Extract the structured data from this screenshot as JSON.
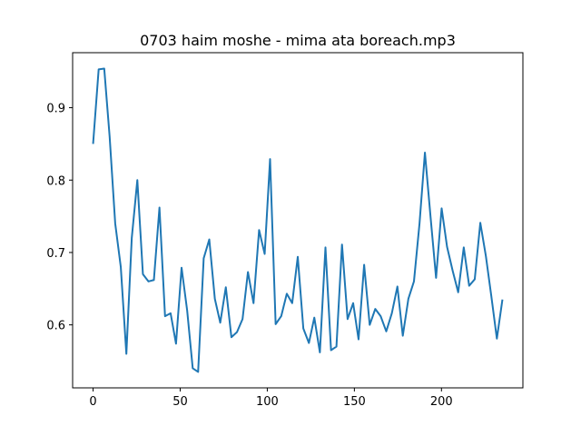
{
  "chart_data": {
    "type": "line",
    "title": "0703 haim moshe - mima ata boreach.mp3",
    "x": [
      0,
      3.2,
      6.4,
      9.5,
      12.7,
      15.9,
      19.1,
      22.2,
      25.4,
      28.6,
      31.8,
      34.9,
      38.1,
      41.3,
      44.5,
      47.6,
      50.8,
      54,
      57.2,
      60.3,
      63.5,
      66.7,
      69.9,
      73,
      76.2,
      79.4,
      82.6,
      85.8,
      88.9,
      92.1,
      95.3,
      98.5,
      101.6,
      104.8,
      108,
      111.2,
      114.3,
      117.5,
      120.7,
      123.9,
      127,
      130.2,
      133.4,
      136.6,
      139.7,
      142.9,
      146.1,
      149.3,
      152.4,
      155.6,
      158.8,
      162,
      165.1,
      168.3,
      171.5,
      174.7,
      177.8,
      181,
      184.2,
      187.4,
      190.5,
      193.7,
      196.9,
      200.1,
      203.2,
      206.4,
      209.6,
      212.8,
      215.9,
      219.1,
      222.3,
      225.5,
      228.6,
      231.8,
      235
    ],
    "series": [
      {
        "color": "#1f77b4",
        "values": [
          0.85,
          0.953,
          0.954,
          0.86,
          0.74,
          0.68,
          0.56,
          0.72,
          0.8,
          0.67,
          0.66,
          0.662,
          0.762,
          0.612,
          0.616,
          0.574,
          0.679,
          0.62,
          0.54,
          0.535,
          0.692,
          0.718,
          0.636,
          0.603,
          0.652,
          0.583,
          0.59,
          0.608,
          0.673,
          0.63,
          0.731,
          0.698,
          0.829,
          0.601,
          0.612,
          0.643,
          0.63,
          0.694,
          0.595,
          0.575,
          0.61,
          0.562,
          0.707,
          0.565,
          0.57,
          0.711,
          0.608,
          0.63,
          0.58,
          0.683,
          0.6,
          0.622,
          0.612,
          0.591,
          0.616,
          0.653,
          0.585,
          0.636,
          0.66,
          0.74,
          0.838,
          0.75,
          0.665,
          0.761,
          0.708,
          0.675,
          0.645,
          0.707,
          0.654,
          0.663,
          0.741,
          0.695,
          0.64,
          0.581,
          0.635
        ]
      }
    ],
    "xlim": [
      -11.75,
      246.75
    ],
    "xticks": [
      0,
      50,
      100,
      150,
      200
    ],
    "ylim": [
      0.513,
      0.976
    ],
    "yticks": [
      0.6,
      0.7,
      0.8,
      0.9
    ]
  }
}
